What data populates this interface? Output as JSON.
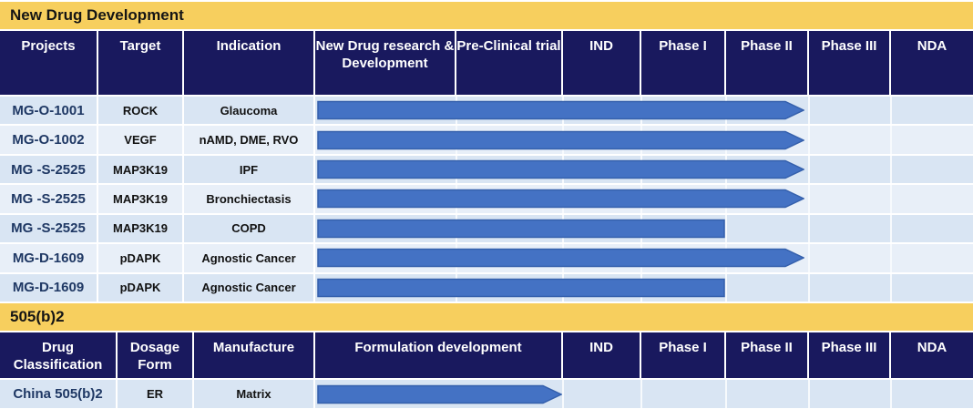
{
  "colors": {
    "band_yellow": "#F7CF5E",
    "header_navy": "#19195E",
    "row_odd_bg": "#D9E5F3",
    "row_even_bg": "#E8EFF8",
    "bar_fill": "#4472C4",
    "bar_stroke": "#3560AC",
    "project_text": "#1F3864"
  },
  "section1": {
    "title": "New Drug Development",
    "columns": [
      "Projects",
      "Target",
      "Indication",
      "New Drug research & Development",
      "Pre-Clinical trial",
      "IND",
      "Phase I",
      "Phase II",
      "Phase III",
      "NDA"
    ],
    "rows": [
      {
        "project": "MG-O-1001",
        "target": "ROCK",
        "indication": "Glaucoma",
        "bar": {
          "start_x": 348,
          "end_x": 883,
          "arrowhead": true
        }
      },
      {
        "project": "MG-O-1002",
        "target": "VEGF",
        "indication": "nAMD, DME, RVO",
        "bar": {
          "start_x": 348,
          "end_x": 883,
          "arrowhead": true
        }
      },
      {
        "project": "MG -S-2525",
        "target": "MAP3K19",
        "indication": "IPF",
        "bar": {
          "start_x": 348,
          "end_x": 883,
          "arrowhead": true
        }
      },
      {
        "project": "MG -S-2525",
        "target": "MAP3K19",
        "indication": "Bronchiectasis",
        "bar": {
          "start_x": 348,
          "end_x": 883,
          "arrowhead": true
        }
      },
      {
        "project": "MG -S-2525",
        "target": "MAP3K19",
        "indication": "COPD",
        "bar": {
          "start_x": 348,
          "end_x": 796,
          "arrowhead": false
        }
      },
      {
        "project": "MG-D-1609",
        "target": "pDAPK",
        "indication": "Agnostic Cancer",
        "bar": {
          "start_x": 348,
          "end_x": 883,
          "arrowhead": true
        }
      },
      {
        "project": "MG-D-1609",
        "target": "pDAPK",
        "indication": "Agnostic Cancer",
        "bar": {
          "start_x": 348,
          "end_x": 796,
          "arrowhead": false
        }
      }
    ]
  },
  "section2": {
    "title": "505(b)2",
    "columns": [
      "Drug Classification",
      "Dosage Form",
      "Manufacture",
      "Formulation development",
      "IND",
      "Phase I",
      "Phase II",
      "Phase III",
      "NDA"
    ],
    "rows": [
      {
        "classification": "China 505(b)2",
        "dosage_form": "ER",
        "manufacture": "Matrix",
        "bar": {
          "start_x": 348,
          "end_x": 617,
          "arrowhead": true
        }
      }
    ]
  },
  "chart_data": {
    "type": "bar",
    "orientation": "horizontal",
    "title": "New Drug Development / 505(b)2 pipeline",
    "stages": [
      "New Drug research & Development",
      "Pre-Clinical trial",
      "IND",
      "Phase I",
      "Phase II",
      "Phase III",
      "NDA"
    ],
    "series": [
      {
        "name": "MG-O-1001 (ROCK, Glaucoma)",
        "start_stage": "New Drug research & Development",
        "end_stage": "Phase II",
        "arrowhead": true
      },
      {
        "name": "MG-O-1002 (VEGF, nAMD, DME, RVO)",
        "start_stage": "New Drug research & Development",
        "end_stage": "Phase II",
        "arrowhead": true
      },
      {
        "name": "MG -S-2525 (MAP3K19, IPF)",
        "start_stage": "New Drug research & Development",
        "end_stage": "Phase II",
        "arrowhead": true
      },
      {
        "name": "MG -S-2525 (MAP3K19, Bronchiectasis)",
        "start_stage": "New Drug research & Development",
        "end_stage": "Phase II",
        "arrowhead": true
      },
      {
        "name": "MG -S-2525 (MAP3K19, COPD)",
        "start_stage": "New Drug research & Development",
        "end_stage": "Phase I",
        "arrowhead": false
      },
      {
        "name": "MG-D-1609 (pDAPK, Agnostic Cancer)",
        "start_stage": "New Drug research & Development",
        "end_stage": "Phase II",
        "arrowhead": true
      },
      {
        "name": "MG-D-1609 (pDAPK, Agnostic Cancer)",
        "start_stage": "New Drug research & Development",
        "end_stage": "Phase I",
        "arrowhead": false
      },
      {
        "name": "China 505(b)2 (ER, Matrix)",
        "start_stage": "Formulation development",
        "end_stage": "Formulation development",
        "arrowhead": true
      }
    ],
    "legend": false,
    "grid": true
  }
}
